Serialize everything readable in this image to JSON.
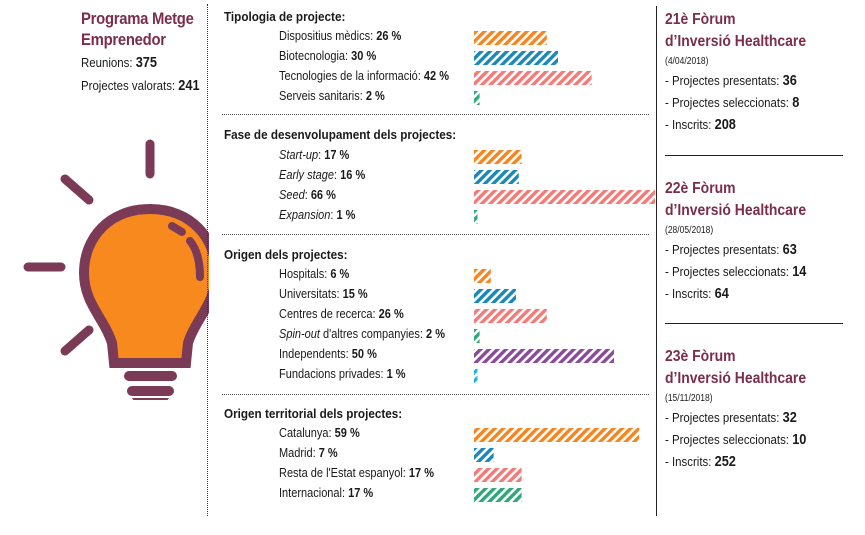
{
  "colors": {
    "brand": "#7b2e4c",
    "bulb_fill": "#f7891f",
    "orange": "#f7851f",
    "blue": "#1a88b8",
    "salmon": "#f47a78",
    "green": "#2fa878",
    "purple": "#8a4a9a",
    "cyan": "#1fb6e4"
  },
  "left": {
    "title_line1": "Programa Metge",
    "title_line2": "Emprenedor",
    "reunions_label": "Reunions:",
    "reunions_value": "375",
    "valorats_label": "Projectes valorats:",
    "valorats_value": "241",
    "icon": "lightbulb-icon"
  },
  "chart_data": {
    "type": "bar",
    "orientation": "horizontal",
    "unit": "%",
    "groups": [
      {
        "title": "Tipologia de projecte:",
        "categories": [
          "Dispositius mèdics",
          "Biotecnologia",
          "Tecnologies de la informació",
          "Serveis sanitaris"
        ],
        "italic": [
          false,
          false,
          false,
          false
        ],
        "values": [
          26,
          30,
          42,
          2
        ],
        "colors": [
          "orange",
          "blue",
          "salmon",
          "green"
        ]
      },
      {
        "title": "Fase de desenvolupament dels projectes:",
        "categories": [
          "Start-up",
          "Early stage",
          "Seed",
          "Expansion"
        ],
        "italic": [
          true,
          true,
          true,
          true
        ],
        "values": [
          17,
          16,
          66,
          1
        ],
        "colors": [
          "orange",
          "blue",
          "salmon",
          "green"
        ]
      },
      {
        "title": "Origen dels projectes:",
        "categories": [
          "Hospitals",
          "Universitats",
          "Centres de recerca",
          "Spin-out d'altres companyies",
          "Independents",
          "Fundacions privades"
        ],
        "italic": [
          false,
          false,
          false,
          "Spin-out",
          false,
          false
        ],
        "values": [
          6,
          15,
          26,
          2,
          50,
          1
        ],
        "colors": [
          "orange",
          "blue",
          "salmon",
          "green",
          "purple",
          "cyan"
        ]
      },
      {
        "title": "Origen territorial dels projectes:",
        "categories": [
          "Catalunya",
          "Madrid",
          "Resta de l'Estat espanyol",
          "Internacional"
        ],
        "italic": [
          false,
          false,
          false,
          false
        ],
        "values": [
          59,
          7,
          17,
          17
        ],
        "colors": [
          "orange",
          "blue",
          "salmon",
          "green"
        ]
      }
    ]
  },
  "forums": [
    {
      "title_line1": "21è Fòrum",
      "title_line2": "d’Inversió Healthcare",
      "date": "(4/04/2018)",
      "presentats_label": "- Projectes presentats:",
      "presentats": "36",
      "seleccionats_label": "- Projectes seleccionats:",
      "seleccionats": "8",
      "inscrits_label": "- Inscrits:",
      "inscrits": "208"
    },
    {
      "title_line1": "22è Fòrum",
      "title_line2": "d’Inversió Healthcare",
      "date": "(28/05/2018)",
      "presentats_label": "- Projectes presentats:",
      "presentats": "63",
      "seleccionats_label": "- Projectes seleccionats:",
      "seleccionats": "14",
      "inscrits_label": "- Inscrits:",
      "inscrits": "64"
    },
    {
      "title_line1": "23è Fòrum",
      "title_line2": "d’Inversió Healthcare",
      "date": "(15/11/2018)",
      "presentats_label": "- Projectes presentats:",
      "presentats": "32",
      "seleccionats_label": "- Projectes seleccionats:",
      "seleccionats": "10",
      "inscrits_label": "- Inscrits:",
      "inscrits": "252"
    }
  ]
}
